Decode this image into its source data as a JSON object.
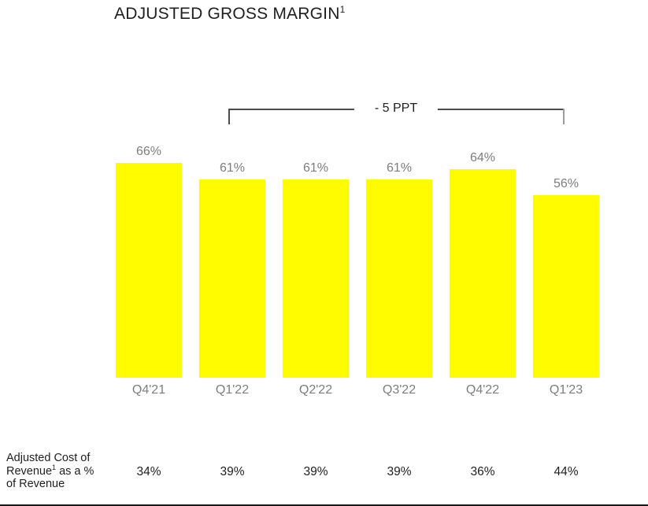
{
  "chart_data": {
    "type": "bar",
    "title": "ADJUSTED GROSS MARGIN",
    "title_footnote": "1",
    "categories": [
      "Q4'21",
      "Q1'22",
      "Q2'22",
      "Q3'22",
      "Q4'22",
      "Q1'23"
    ],
    "series": [
      {
        "name": "Adjusted Gross Margin (% of revenue)",
        "values": [
          66,
          61,
          61,
          61,
          64,
          56
        ],
        "labels": [
          "66%",
          "61%",
          "61%",
          "61%",
          "64%",
          "56%"
        ]
      },
      {
        "name": "Adjusted Cost of Revenue as a % of Revenue",
        "values": [
          34,
          39,
          39,
          39,
          36,
          44
        ],
        "labels": [
          "34%",
          "39%",
          "39%",
          "39%",
          "36%",
          "44%"
        ]
      }
    ],
    "annotation": {
      "text": "- 5 PPT",
      "from_category": "Q1'22",
      "to_category": "Q1'23"
    },
    "bar_color": "#FFFC00",
    "value_label_color": "#7d7d7d",
    "ylim": [
      0,
      100
    ],
    "grid": false,
    "legend": false
  },
  "footnote_row": {
    "label_line1": "Adjusted Cost of",
    "label_line2_pre": "Revenue",
    "label_line2_sup": "1",
    "label_line2_post": " as a %",
    "label_line3": "of Revenue"
  }
}
